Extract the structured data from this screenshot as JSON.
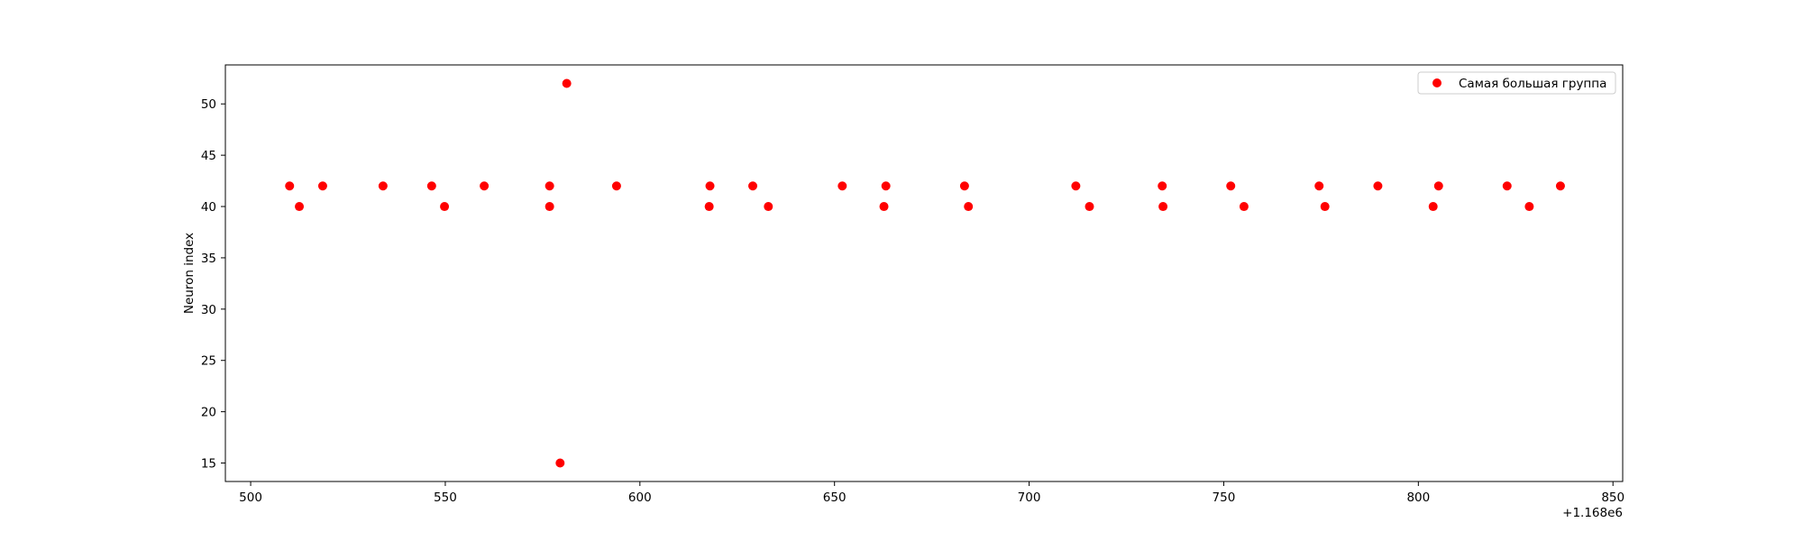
{
  "chart_data": {
    "type": "scatter",
    "title": "",
    "xlabel": "",
    "ylabel": "Neuron index",
    "x_offset_label": "+1.168e6",
    "x_offset": 1168000,
    "xlim": [
      493.5,
      852.5
    ],
    "ylim": [
      13.2,
      53.8
    ],
    "xticks": [
      500,
      550,
      600,
      650,
      700,
      750,
      800,
      850
    ],
    "yticks": [
      15,
      20,
      25,
      30,
      35,
      40,
      45,
      50
    ],
    "xtick_labels": [
      "500",
      "550",
      "600",
      "650",
      "700",
      "750",
      "800",
      "850"
    ],
    "ytick_labels": [
      "15",
      "20",
      "25",
      "30",
      "35",
      "40",
      "45",
      "50"
    ],
    "grid": false,
    "legend_position": "top-right",
    "series": [
      {
        "name": "Самая большая группа",
        "color": "#ff0000",
        "points": [
          [
            510,
            42
          ],
          [
            512.5,
            40
          ],
          [
            518.5,
            42
          ],
          [
            534,
            42
          ],
          [
            546.5,
            42
          ],
          [
            549.8,
            40
          ],
          [
            560,
            42
          ],
          [
            576.8,
            42
          ],
          [
            576.8,
            40
          ],
          [
            579.5,
            15
          ],
          [
            581.2,
            52
          ],
          [
            594,
            42
          ],
          [
            617.8,
            40
          ],
          [
            618,
            42
          ],
          [
            629,
            42
          ],
          [
            633,
            40
          ],
          [
            652,
            42
          ],
          [
            662.7,
            40
          ],
          [
            663.2,
            42
          ],
          [
            683.4,
            42
          ],
          [
            684.4,
            40
          ],
          [
            712,
            42
          ],
          [
            715.5,
            40
          ],
          [
            734.2,
            42
          ],
          [
            734.4,
            40
          ],
          [
            751.8,
            42
          ],
          [
            755.2,
            40
          ],
          [
            774.5,
            42
          ],
          [
            776,
            40
          ],
          [
            789.6,
            42
          ],
          [
            803.8,
            40
          ],
          [
            805.2,
            42
          ],
          [
            822.8,
            42
          ],
          [
            828.5,
            40
          ],
          [
            836.5,
            42
          ]
        ]
      }
    ]
  }
}
